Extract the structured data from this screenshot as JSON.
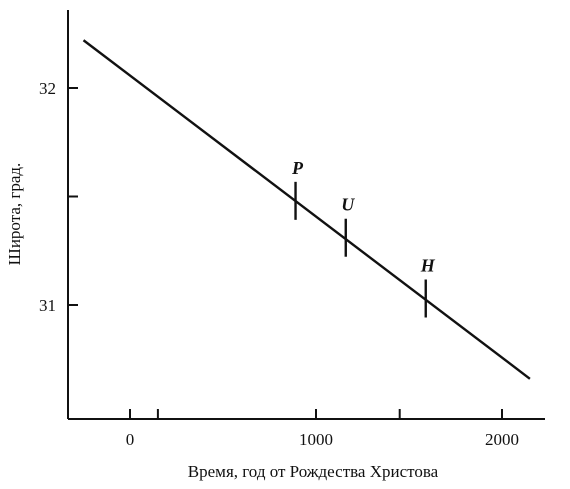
{
  "chart_data": {
    "type": "line",
    "title": "",
    "xlabel": "Время, год от Рождества Христова",
    "ylabel": "Широта, град.",
    "xlim": [
      -300,
      2250
    ],
    "ylim": [
      30.45,
      32.35
    ],
    "x_ticks": [
      0,
      1000,
      2000
    ],
    "x_tick_labels": [
      "0",
      "1000",
      "2000"
    ],
    "x_minor_ticks": [
      150,
      1450
    ],
    "y_ticks": [
      31,
      32
    ],
    "y_tick_labels": [
      "31",
      "32"
    ],
    "y_minor_ticks": [
      31.5
    ],
    "grid": false,
    "series": [
      {
        "x": [
          -250,
          2150
        ],
        "y": [
          32.22,
          30.66
        ]
      }
    ],
    "markers": [
      {
        "label": "P",
        "x": 890,
        "y": 31.48
      },
      {
        "label": "U",
        "x": 1160,
        "y": 31.31
      },
      {
        "label": "H",
        "x": 1590,
        "y": 31.03
      }
    ]
  }
}
